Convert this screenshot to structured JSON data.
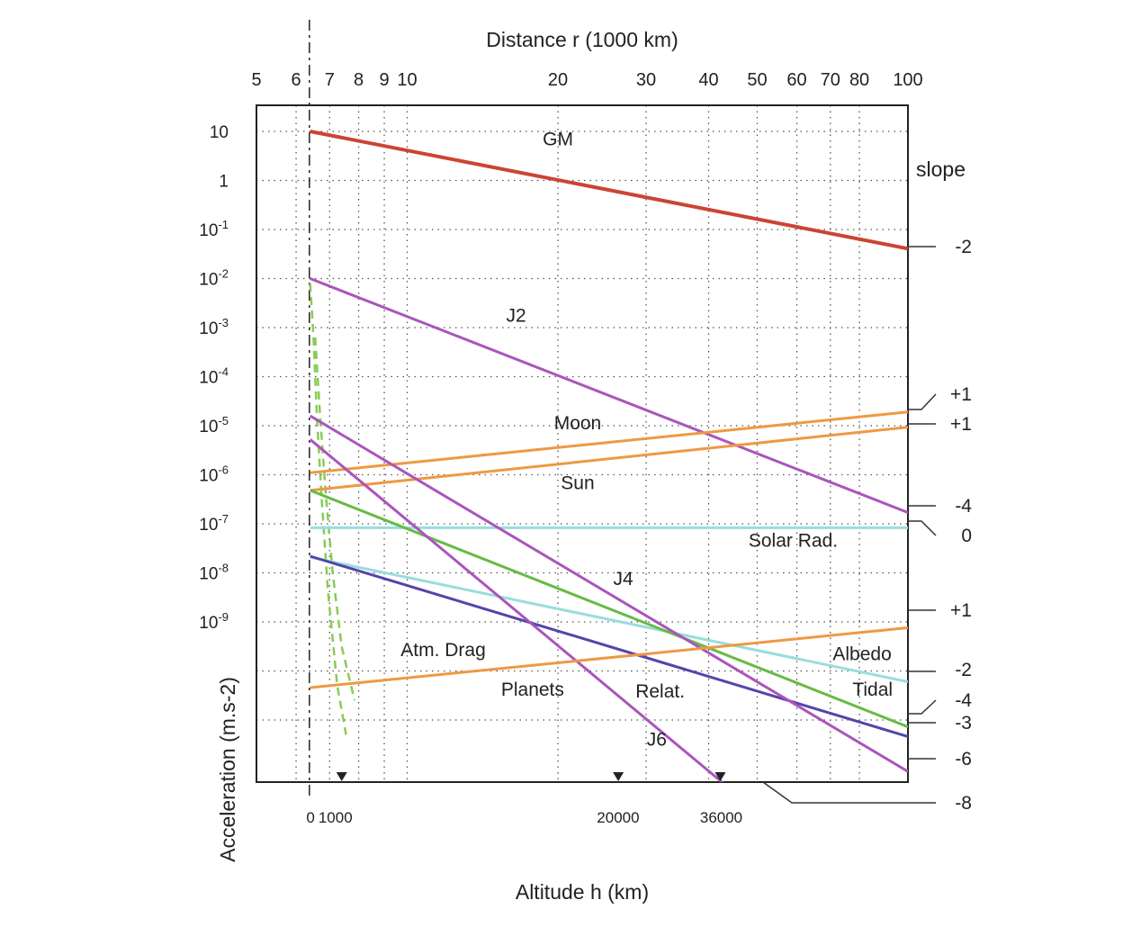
{
  "chart_data": {
    "type": "line",
    "title": "",
    "x_top_label": "Distance r (1000 km)",
    "x_top_ticks": [
      "5",
      "6",
      "7",
      "8",
      "9",
      "10",
      "20",
      "30",
      "40",
      "50",
      "60",
      "70",
      "80",
      "100"
    ],
    "x_bottom_label": "Altitude h (km)",
    "x_bottom_ticks": [
      "0",
      "1000",
      "20000",
      "36000"
    ],
    "ylabel": "Acceleration (m.s-2)",
    "y_ticks": [
      {
        "base": "10",
        "exp": ""
      },
      {
        "base": "1",
        "exp": ""
      },
      {
        "base": "10",
        "exp": "-1"
      },
      {
        "base": "10",
        "exp": "-2"
      },
      {
        "base": "10",
        "exp": "-3"
      },
      {
        "base": "10",
        "exp": "-4"
      },
      {
        "base": "10",
        "exp": "-5"
      },
      {
        "base": "10",
        "exp": "-6"
      },
      {
        "base": "10",
        "exp": "-7"
      },
      {
        "base": "10",
        "exp": "-8"
      },
      {
        "base": "10",
        "exp": "-9"
      }
    ],
    "x_scale": "log",
    "y_scale": "log",
    "x_unit_note": "distance r in 1000 km",
    "xlim": [
      5,
      100
    ],
    "ylim_log10": [
      -13.5,
      1.5
    ],
    "grid": true,
    "slope_header": "slope",
    "series": [
      {
        "name": "GM",
        "color": "#cc4433",
        "width": 4,
        "points": [
          [
            6.4,
            1.0
          ],
          [
            100,
            -1.39
          ]
        ],
        "slope": "-2"
      },
      {
        "name": "J2",
        "color": "#aa55bb",
        "width": 3,
        "points": [
          [
            6.4,
            -2.0
          ],
          [
            100,
            -6.77
          ]
        ],
        "slope": "-4"
      },
      {
        "name": "Moon",
        "color": "#ee9944",
        "width": 3,
        "points": [
          [
            6.4,
            -5.96
          ],
          [
            100,
            -4.72
          ]
        ],
        "slope": "+1"
      },
      {
        "name": "Sun",
        "color": "#ee9944",
        "width": 3,
        "points": [
          [
            6.4,
            -6.32
          ],
          [
            100,
            -5.03
          ]
        ],
        "slope": "+1"
      },
      {
        "name": "Solar Rad.",
        "color": "#99dddd",
        "width": 3,
        "points": [
          [
            6.4,
            -7.08
          ],
          [
            100,
            -7.08
          ]
        ],
        "slope": "0"
      },
      {
        "name": "Albedo",
        "color": "#99dddd",
        "width": 3,
        "points": [
          [
            6.4,
            -7.68
          ],
          [
            100,
            -10.22
          ]
        ],
        "slope": "-2"
      },
      {
        "name": "Tidal",
        "color": "#66bb44",
        "width": 3,
        "points": [
          [
            6.4,
            -6.32
          ],
          [
            100,
            -11.14
          ]
        ],
        "slope": "-4"
      },
      {
        "name": "Relat.",
        "color": "#5544aa",
        "width": 3,
        "points": [
          [
            6.4,
            -7.66
          ],
          [
            100,
            -11.34
          ]
        ],
        "slope": "-3"
      },
      {
        "name": "J4",
        "color": "#aa55bb",
        "width": 3,
        "points": [
          [
            6.4,
            -4.8
          ],
          [
            100,
            -12.05
          ]
        ],
        "slope": "-6"
      },
      {
        "name": "J6",
        "color": "#aa55bb",
        "width": 3,
        "points": [
          [
            6.4,
            -5.28
          ],
          [
            50.5,
            -12.9
          ]
        ],
        "slope": "-8"
      },
      {
        "name": "Planets",
        "color": "#ee9944",
        "width": 3,
        "points": [
          [
            6.4,
            -10.34
          ],
          [
            100,
            -9.12
          ]
        ],
        "slope": "+1"
      }
    ],
    "drag_curves": [
      {
        "name": "Atm. Drag",
        "color": "#88cc55",
        "points": [
          [
            6.4,
            -2.1
          ],
          [
            6.5,
            -3.2
          ],
          [
            6.6,
            -4.8
          ],
          [
            6.75,
            -6.5
          ],
          [
            6.95,
            -8.4
          ],
          [
            7.25,
            -10.3
          ],
          [
            7.55,
            -11.3
          ]
        ]
      },
      {
        "name": "",
        "color": "#88cc55",
        "points": [
          [
            6.55,
            -3.2
          ],
          [
            6.7,
            -4.8
          ],
          [
            6.88,
            -6.4
          ],
          [
            7.1,
            -8.0
          ],
          [
            7.4,
            -9.5
          ],
          [
            7.85,
            -10.6
          ]
        ]
      }
    ],
    "labels": [
      {
        "text": "GM",
        "x": 20,
        "y": 0.72
      },
      {
        "text": "J2",
        "x": 16.5,
        "y": -2.88
      },
      {
        "text": "Moon",
        "x": 21.9,
        "y": -5.07
      },
      {
        "text": "Sun",
        "x": 21.9,
        "y": -6.29
      },
      {
        "text": "Solar Rad.",
        "x": 59,
        "y": -7.47
      },
      {
        "text": "J4",
        "x": 27,
        "y": -8.25
      },
      {
        "text": "Atm. Drag",
        "x": 11.8,
        "y": -9.7
      },
      {
        "text": "Albedo",
        "x": 81,
        "y": -9.78
      },
      {
        "text": "Planets",
        "x": 17.8,
        "y": -10.5
      },
      {
        "text": "Relat.",
        "x": 32,
        "y": -10.54
      },
      {
        "text": "Tidal",
        "x": 85,
        "y": -10.5
      },
      {
        "text": "J6",
        "x": 31.5,
        "y": -11.52
      }
    ],
    "markers_x": [
      7.4,
      26.4,
      42.2
    ]
  }
}
